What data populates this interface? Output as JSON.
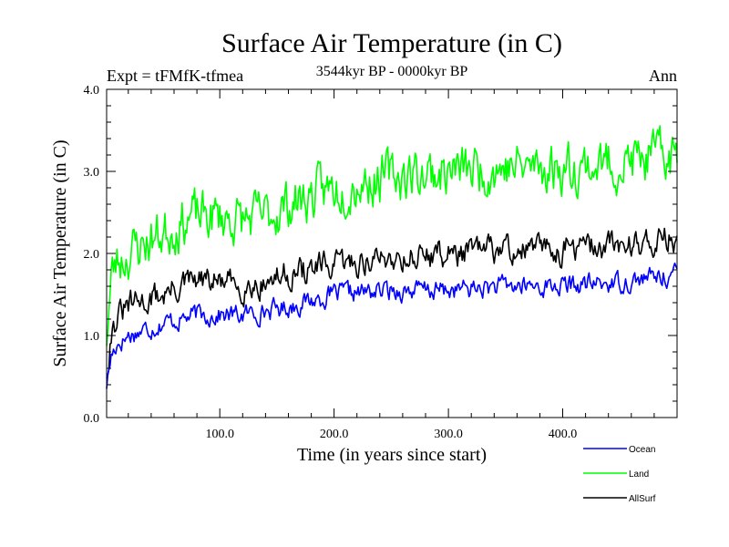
{
  "chart_data": {
    "type": "line",
    "title": "Surface Air Temperature (in C)",
    "subtitle": "3544kyr BP - 0000kyr BP",
    "left_annotation": "Expt = tFMfK-tfmea",
    "right_annotation": "Ann",
    "xlabel": "Time (in years since start)",
    "ylabel": "Surface Air Temperature (in C)",
    "xlim": [
      1,
      500
    ],
    "ylim": [
      0,
      4
    ],
    "x_ticks": [
      100,
      200,
      300,
      400
    ],
    "x_tick_labels": [
      "100.0",
      "200.0",
      "300.0",
      "400.0"
    ],
    "y_ticks": [
      0,
      1,
      2,
      3,
      4
    ],
    "y_tick_labels": [
      "0.0",
      "1.0",
      "2.0",
      "3.0",
      "4.0"
    ],
    "legend_placement": "below-right",
    "x_start": 1,
    "x_step": 1,
    "series": [
      {
        "name": "Ocean",
        "color": "#0000ff",
        "keypoints": [
          [
            1,
            0.4
          ],
          [
            5,
            0.75
          ],
          [
            10,
            0.9
          ],
          [
            20,
            1.0
          ],
          [
            30,
            1.05
          ],
          [
            50,
            1.15
          ],
          [
            80,
            1.25
          ],
          [
            100,
            1.25
          ],
          [
            120,
            1.25
          ],
          [
            140,
            1.3
          ],
          [
            160,
            1.35
          ],
          [
            200,
            1.5
          ],
          [
            250,
            1.55
          ],
          [
            300,
            1.55
          ],
          [
            350,
            1.6
          ],
          [
            400,
            1.6
          ],
          [
            450,
            1.65
          ],
          [
            500,
            1.75
          ]
        ],
        "amplitude": 0.1,
        "noise_seed": 17
      },
      {
        "name": "Land",
        "color": "#00ff00",
        "keypoints": [
          [
            1,
            1.0
          ],
          [
            5,
            1.7
          ],
          [
            10,
            1.9
          ],
          [
            20,
            2.0
          ],
          [
            30,
            2.1
          ],
          [
            50,
            2.25
          ],
          [
            75,
            2.45
          ],
          [
            100,
            2.45
          ],
          [
            120,
            2.4
          ],
          [
            140,
            2.45
          ],
          [
            160,
            2.6
          ],
          [
            200,
            2.8
          ],
          [
            250,
            2.95
          ],
          [
            300,
            3.0
          ],
          [
            350,
            3.05
          ],
          [
            400,
            3.05
          ],
          [
            450,
            3.1
          ],
          [
            500,
            3.2
          ]
        ],
        "amplitude": 0.25,
        "noise_seed": 23
      },
      {
        "name": "AllSurf",
        "color": "#000000",
        "keypoints": [
          [
            1,
            0.55
          ],
          [
            5,
            1.05
          ],
          [
            10,
            1.2
          ],
          [
            20,
            1.35
          ],
          [
            30,
            1.4
          ],
          [
            50,
            1.5
          ],
          [
            75,
            1.65
          ],
          [
            100,
            1.65
          ],
          [
            120,
            1.6
          ],
          [
            140,
            1.65
          ],
          [
            160,
            1.75
          ],
          [
            200,
            1.85
          ],
          [
            250,
            1.95
          ],
          [
            300,
            2.0
          ],
          [
            350,
            2.05
          ],
          [
            400,
            2.05
          ],
          [
            450,
            2.1
          ],
          [
            500,
            2.2
          ]
        ],
        "amplitude": 0.14,
        "noise_seed": 31
      }
    ]
  }
}
